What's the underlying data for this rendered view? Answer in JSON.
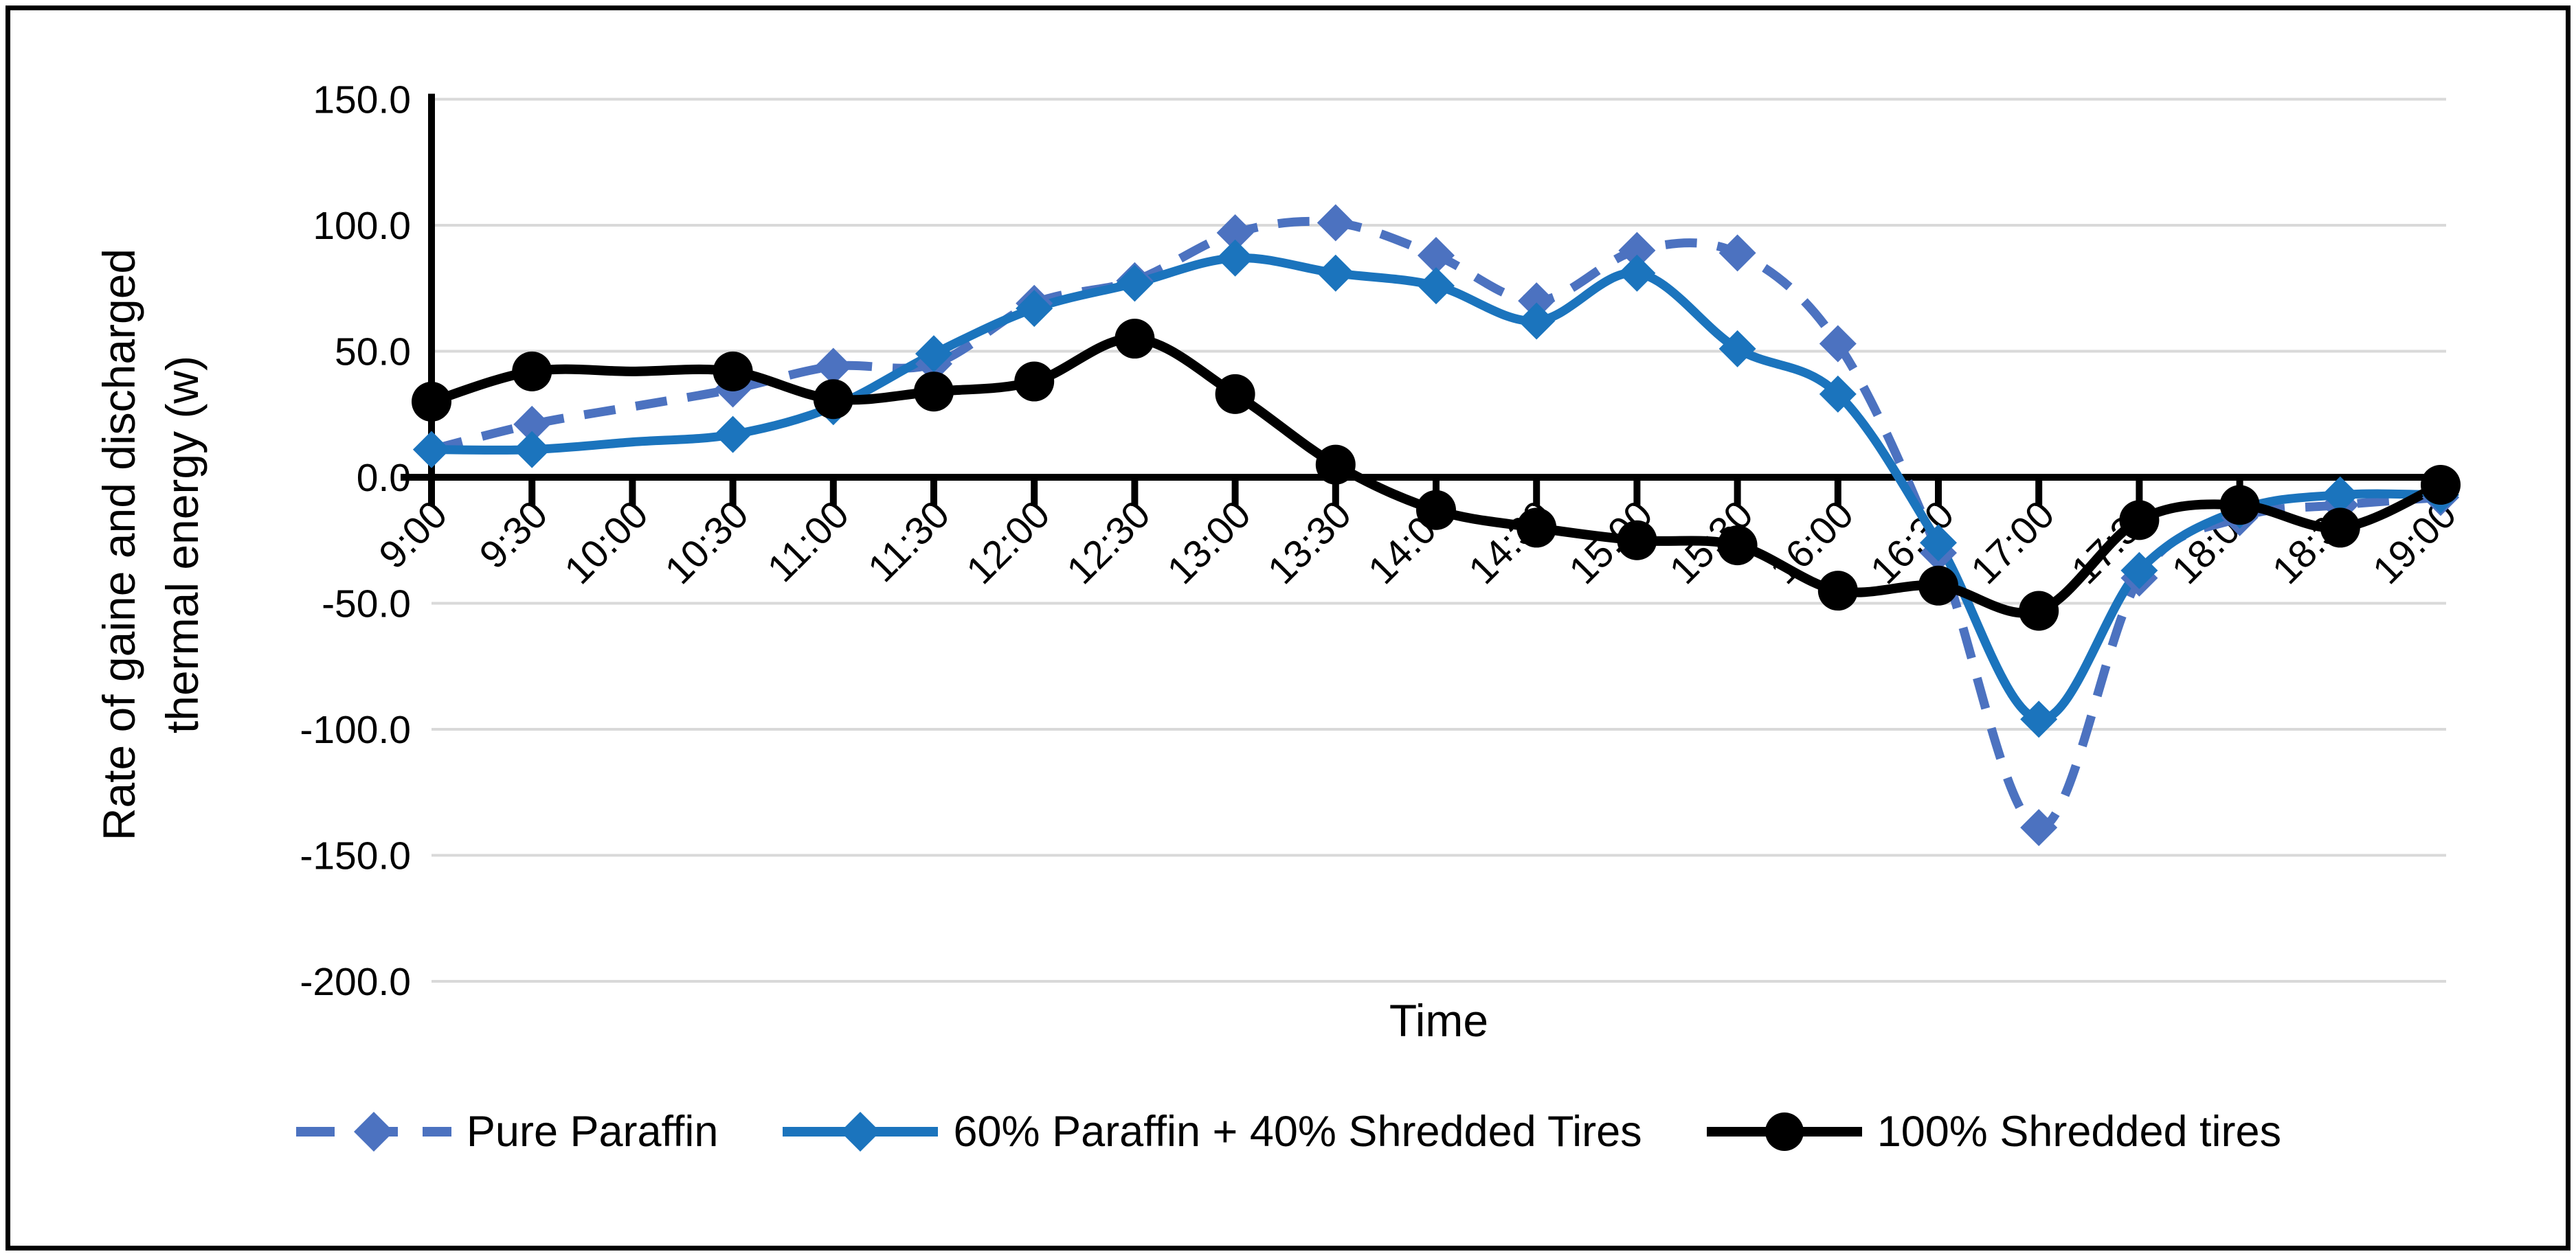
{
  "figure": {
    "background": "#ffffff",
    "border_color": "#000000"
  },
  "chart_data": {
    "type": "line",
    "title": "",
    "xlabel": "Time",
    "ylabel": "Rate of gaine and discharged thermal energy (w)",
    "ylabel_lines": [
      "Rate of gaine and discharged",
      "thermal energy (w)"
    ],
    "ylim": [
      -200,
      150
    ],
    "ytick_step": 50,
    "ytick_labels": [
      "150.0",
      "100.0",
      "50.0",
      "0.0",
      "-50.0",
      "-100.0",
      "-150.0",
      "-200.0"
    ],
    "grid": true,
    "gridline_color": "#d9d9d9",
    "axis_color": "#000000",
    "legend_position": "bottom",
    "categories": [
      "9:00",
      "9:30",
      "10:00",
      "10:30",
      "11:00",
      "11:30",
      "12:00",
      "12:30",
      "13:00",
      "13:30",
      "14:00",
      "14:30",
      "15:00",
      "15:30",
      "16:00",
      "16:30",
      "17:00",
      "17:30",
      "18:00",
      "18:30",
      "19:00"
    ],
    "series": [
      {
        "name": "Pure Paraffin",
        "color": "#4c72c0",
        "style": "dashed",
        "marker": "diamond",
        "values": [
          11,
          21,
          null,
          35,
          44,
          45,
          69,
          78,
          97,
          101,
          88,
          70,
          90,
          89,
          53,
          -30,
          -139,
          -40,
          -16,
          -11,
          -8
        ]
      },
      {
        "name": "60% Paraffin + 40% Shredded Tires",
        "color": "#1b74bd",
        "style": "solid",
        "marker": "diamond",
        "values": [
          11,
          11,
          null,
          17,
          28,
          49,
          67,
          77,
          87,
          81,
          76,
          62,
          81,
          51,
          33,
          -26,
          -96,
          -37,
          -13,
          -7,
          -7
        ]
      },
      {
        "name": "100% Shredded tires",
        "color": "#000000",
        "style": "solid",
        "marker": "circle",
        "values": [
          30,
          42,
          null,
          42,
          31,
          34,
          38,
          55,
          33,
          5,
          -13,
          -20,
          -25,
          -27,
          -45,
          -43,
          -53,
          -17,
          -11,
          -20,
          -3
        ]
      }
    ]
  }
}
